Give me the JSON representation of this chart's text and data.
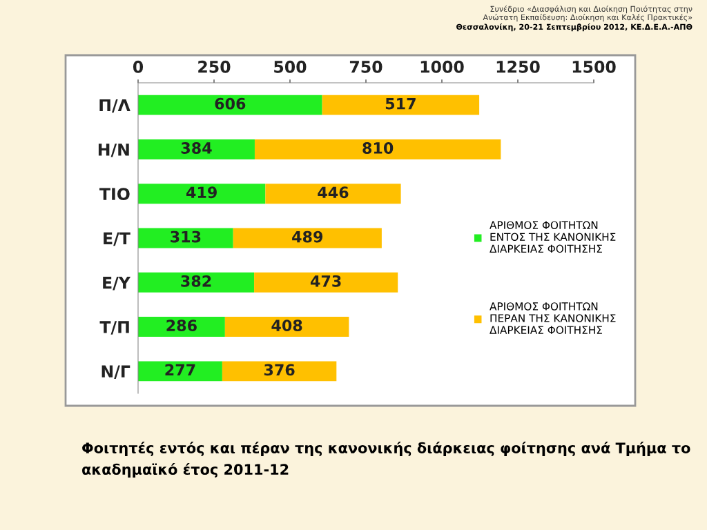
{
  "chart_data": {
    "type": "bar",
    "orientation": "horizontal",
    "stacked": true,
    "title": "Φοιτητές εντός και πέραν της κανονικής διάρκειας φοίτησης ανά Τμήμα το ακαδημαϊκό έτος 2011-12",
    "annotations": [
      "Συνέδριο «Διασφάλιση και Διοίκηση Ποιότητας στην\nΑνώτατη Εκπαίδευση: Διοίκηση και Καλές Πρακτικές»",
      "Θεσσαλονίκη, 20-21 Σεπτεμβρίου 2012, ΚΕ.Δ.Ε.Α.-ΑΠΘ"
    ],
    "categories": [
      "Π/Λ",
      "Η/Ν",
      "ΤΙΟ",
      "Ε/Τ",
      "Ε/Υ",
      "Τ/Π",
      "Ν/Γ"
    ],
    "series": [
      {
        "name": "ΑΡΙΘΜΟΣ ΦΟΙΤΗΤΩΝ\nΕΝΤΟΣ ΤΗΣ ΚΑΝΟΝΙΚΗΣ\nΔΙΑΡΚΕΙΑΣ ΦΟΙΤΗΣΗΣ",
        "color": "#22ee22",
        "values": [
          606,
          384,
          419,
          313,
          382,
          286,
          277
        ]
      },
      {
        "name": "ΑΡΙΘΜΟΣ ΦΟΙΤΗΤΩΝ\nΠΕΡΑΝ ΤΗΣ ΚΑΝΟΝΙΚΗΣ\nΔΙΑΡΚΕΙΑΣ ΦΟΙΤΗΣΗΣ",
        "color": "#ffc000",
        "values": [
          517,
          810,
          446,
          489,
          473,
          408,
          376
        ]
      }
    ],
    "xlim": [
      0,
      1500
    ],
    "xticks": [
      0,
      250,
      500,
      750,
      1000,
      1250,
      1500
    ],
    "data_labels": true,
    "grid": false,
    "legend": "right"
  }
}
